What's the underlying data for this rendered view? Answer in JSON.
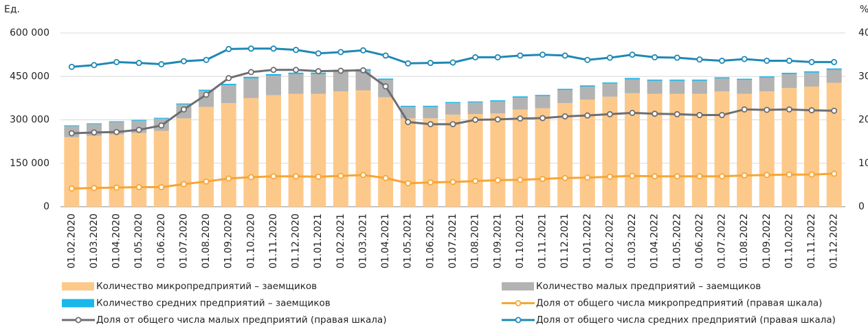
{
  "chart_data": {
    "type": "bar",
    "y_unit": "Ед.",
    "y2_unit": "%",
    "categories": [
      "01.02.2020",
      "01.03.2020",
      "01.04.2020",
      "01.05.2020",
      "01.06.2020",
      "01.07.2020",
      "01.08.2020",
      "01.09.2020",
      "01.10.2020",
      "01.11.2020",
      "01.12.2020",
      "01.01.2021",
      "01.02.2021",
      "01.03.2021",
      "01.04.2021",
      "01.05.2021",
      "01.06.2021",
      "01.07.2021",
      "01.08.2021",
      "01.09.2021",
      "01.10.2021",
      "01.11.2021",
      "01.12.2021",
      "01.01.2022",
      "01.02.2022",
      "01.03.2022",
      "01.04.2022",
      "01.05.2022",
      "01.06.2022",
      "01.07.2022",
      "01.08.2022",
      "01.09.2022",
      "01.10.2022",
      "01.11.2022",
      "01.12.2022"
    ],
    "ylim": [
      0,
      600000
    ],
    "yticks": [
      0,
      {
        "value": 150000,
        "label": "150 000"
      },
      {
        "value": 300000,
        "label": "300 000"
      },
      {
        "value": 450000,
        "label": "450 000"
      },
      {
        "value": 600000,
        "label": "600 000"
      }
    ],
    "y2lim": [
      0,
      40
    ],
    "y2ticks": [
      0,
      10,
      20,
      30,
      40
    ],
    "grid": true,
    "series": [
      {
        "name": "Количество микропредприятий – заемщиков",
        "type": "bar",
        "color": "#fdc98a",
        "values": [
          240000,
          245000,
          250000,
          255000,
          262000,
          305000,
          345000,
          358000,
          375000,
          385000,
          390000,
          390000,
          398000,
          402000,
          378000,
          305000,
          305000,
          318000,
          320000,
          322000,
          335000,
          340000,
          358000,
          370000,
          380000,
          392000,
          390000,
          390000,
          390000,
          398000,
          390000,
          398000,
          410000,
          415000,
          428000
        ]
      },
      {
        "name": "Количество малых предприятий – заемщиков",
        "type": "bar",
        "color": "#b3b3b3",
        "values": [
          38000,
          40000,
          42000,
          42000,
          42000,
          48000,
          55000,
          62000,
          68000,
          68000,
          68000,
          68000,
          70000,
          68000,
          60000,
          40000,
          40000,
          40000,
          40000,
          42000,
          42000,
          42000,
          45000,
          45000,
          45000,
          48000,
          45000,
          45000,
          45000,
          45000,
          48000,
          48000,
          48000,
          48000,
          45000
        ]
      },
      {
        "name": "Количество средних предприятий – заемщиков",
        "type": "bar",
        "color": "#1ab7ea",
        "values": [
          3000,
          3000,
          3000,
          3000,
          3000,
          3500,
          4000,
          4500,
          5000,
          5000,
          5000,
          5000,
          5000,
          5000,
          4500,
          3500,
          3500,
          3500,
          3500,
          3500,
          4000,
          4000,
          4000,
          4000,
          4000,
          4500,
          4000,
          4000,
          4000,
          4000,
          4000,
          4000,
          4500,
          4500,
          4500
        ]
      },
      {
        "name": "Доля от общего числа микропредприятий (правая шкала)",
        "type": "line",
        "axis": "y2",
        "color": "#f7a535",
        "values": [
          4.2,
          4.3,
          4.4,
          4.5,
          4.5,
          5.2,
          5.8,
          6.5,
          6.8,
          7.0,
          7.0,
          6.9,
          7.1,
          7.3,
          6.6,
          5.4,
          5.6,
          5.7,
          5.9,
          6.1,
          6.2,
          6.4,
          6.6,
          6.7,
          6.9,
          7.1,
          7.0,
          7.0,
          7.0,
          7.0,
          7.2,
          7.3,
          7.4,
          7.4,
          7.6
        ]
      },
      {
        "name": "Доля от общего числа малых предприятий  (правая шкала)",
        "type": "line",
        "axis": "y2",
        "color": "#6d6e71",
        "values": [
          16.9,
          17.1,
          17.2,
          17.7,
          18.7,
          22.4,
          25.8,
          29.6,
          31.0,
          31.5,
          31.5,
          31.2,
          31.3,
          31.4,
          27.7,
          19.5,
          19.0,
          19.0,
          20.0,
          20.1,
          20.3,
          20.4,
          20.8,
          21.0,
          21.3,
          21.6,
          21.4,
          21.3,
          21.1,
          21.1,
          22.4,
          22.3,
          22.4,
          22.2,
          22.1
        ]
      },
      {
        "name": "Доля от общего числа средних предприятий  (правая шкала)",
        "type": "line",
        "axis": "y2",
        "color": "#1e88b5",
        "values": [
          32.2,
          32.6,
          33.3,
          33.1,
          32.8,
          33.5,
          33.8,
          36.3,
          36.4,
          36.4,
          36.1,
          35.3,
          35.6,
          36.0,
          34.8,
          33.0,
          33.1,
          33.2,
          34.4,
          34.4,
          34.8,
          35.0,
          34.8,
          33.8,
          34.3,
          35.0,
          34.4,
          34.3,
          33.9,
          33.6,
          34.0,
          33.6,
          33.6,
          33.3,
          33.3
        ]
      }
    ]
  }
}
